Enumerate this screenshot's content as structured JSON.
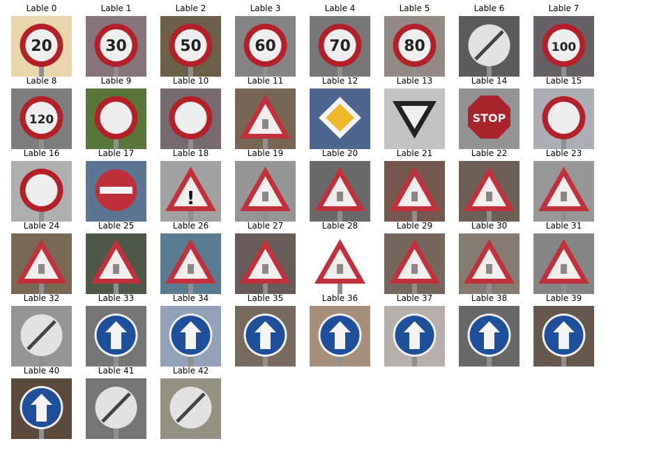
{
  "thumbnails": [
    {
      "label": "Lable 0",
      "sign": "circle-red",
      "text": "20",
      "bg": "#e9d2a6"
    },
    {
      "label": "Lable 1",
      "sign": "circle-red",
      "text": "30",
      "bg": "#7b6a70"
    },
    {
      "label": "Lable 2",
      "sign": "circle-red",
      "text": "50",
      "bg": "#5f5239"
    },
    {
      "label": "Lable 3",
      "sign": "circle-red",
      "text": "60",
      "bg": "#7a7a7a"
    },
    {
      "label": "Lable 4",
      "sign": "circle-red",
      "text": "70",
      "bg": "#6c6c6c"
    },
    {
      "label": "Lable 5",
      "sign": "circle-red",
      "text": "80",
      "bg": "#8a7f7b"
    },
    {
      "label": "Lable 6",
      "sign": "circle-end",
      "text": "",
      "bg": "#4f4f4f"
    },
    {
      "label": "Lable 7",
      "sign": "circle-red",
      "text": "100",
      "bg": "#5a5458"
    },
    {
      "label": "Lable 8",
      "sign": "circle-red",
      "text": "120",
      "bg": "#727272"
    },
    {
      "label": "Lable 9",
      "sign": "circle-red",
      "text": "",
      "bg": "#4a6a2a"
    },
    {
      "label": "Lable 10",
      "sign": "circle-red",
      "text": "",
      "bg": "#6b5e63"
    },
    {
      "label": "Lable 11",
      "sign": "triangle",
      "text": "",
      "bg": "#6c5a46"
    },
    {
      "label": "Lable 12",
      "sign": "diamond",
      "text": "",
      "bg": "#3f5a86"
    },
    {
      "label": "Lable 13",
      "sign": "yield",
      "text": "",
      "bg": "#bdbdbd"
    },
    {
      "label": "Lable 14",
      "sign": "stop",
      "text": "STOP",
      "bg": "#8a8a8a"
    },
    {
      "label": "Lable 15",
      "sign": "circle-red",
      "text": "",
      "bg": "#a7a7ae"
    },
    {
      "label": "Lable 16",
      "sign": "circle-red",
      "text": "",
      "bg": "#a9a9a9"
    },
    {
      "label": "Lable 17",
      "sign": "noentry",
      "text": "",
      "bg": "#4f6a8a"
    },
    {
      "label": "Lable 18",
      "sign": "triangle",
      "text": "!",
      "bg": "#9a9a9a"
    },
    {
      "label": "Lable 19",
      "sign": "triangle",
      "text": "",
      "bg": "#8c8c8c"
    },
    {
      "label": "Lable 20",
      "sign": "triangle",
      "text": "",
      "bg": "#5e5e5e"
    },
    {
      "label": "Lable 21",
      "sign": "triangle",
      "text": "",
      "bg": "#6a4a3e"
    },
    {
      "label": "Lable 22",
      "sign": "triangle",
      "text": "",
      "bg": "#5f5248"
    },
    {
      "label": "Lable 23",
      "sign": "triangle",
      "text": "",
      "bg": "#8f8f8f"
    },
    {
      "label": "Lable 24",
      "sign": "triangle",
      "text": "",
      "bg": "#6d5c46"
    },
    {
      "label": "Lable 25",
      "sign": "triangle",
      "text": "",
      "bg": "#3f4a3a"
    },
    {
      "label": "Lable 26",
      "sign": "triangle",
      "text": "",
      "bg": "#4c6f86"
    },
    {
      "label": "Lable 27",
      "sign": "triangle",
      "text": "",
      "bg": "#5a4e4a"
    },
    {
      "label": "Lable 28",
      "sign": "triangle",
      "text": "",
      "bg": "#ffffff"
    },
    {
      "label": "Lable 29",
      "sign": "triangle",
      "text": "",
      "bg": "#6b5b50"
    },
    {
      "label": "Lable 30",
      "sign": "triangle",
      "text": "",
      "bg": "#7a7068"
    },
    {
      "label": "Lable 31",
      "sign": "triangle",
      "text": "",
      "bg": "#7b7b7b"
    },
    {
      "label": "Lable 32",
      "sign": "circle-end",
      "text": "",
      "bg": "#8c8c8c"
    },
    {
      "label": "Lable 33",
      "sign": "circle-blue",
      "text": "",
      "bg": "#6a6a6a"
    },
    {
      "label": "Lable 34",
      "sign": "circle-blue",
      "text": "",
      "bg": "#8a9ab2"
    },
    {
      "label": "Lable 35",
      "sign": "circle-blue",
      "text": "",
      "bg": "#6c5e52"
    },
    {
      "label": "Lable 36",
      "sign": "circle-blue",
      "text": "",
      "bg": "#a08674"
    },
    {
      "label": "Lable 37",
      "sign": "circle-blue",
      "text": "",
      "bg": "#b0a9a4"
    },
    {
      "label": "Lable 38",
      "sign": "circle-blue",
      "text": "",
      "bg": "#5c5c5c"
    },
    {
      "label": "Lable 39",
      "sign": "circle-blue",
      "text": "",
      "bg": "#5a4a3e"
    },
    {
      "label": "Lable 40",
      "sign": "circle-blue",
      "text": "",
      "bg": "#4e3a2c"
    },
    {
      "label": "Lable 41",
      "sign": "circle-end",
      "text": "",
      "bg": "#6a6a6a"
    },
    {
      "label": "Lable 42",
      "sign": "circle-end",
      "text": "",
      "bg": "#8a8878"
    }
  ]
}
